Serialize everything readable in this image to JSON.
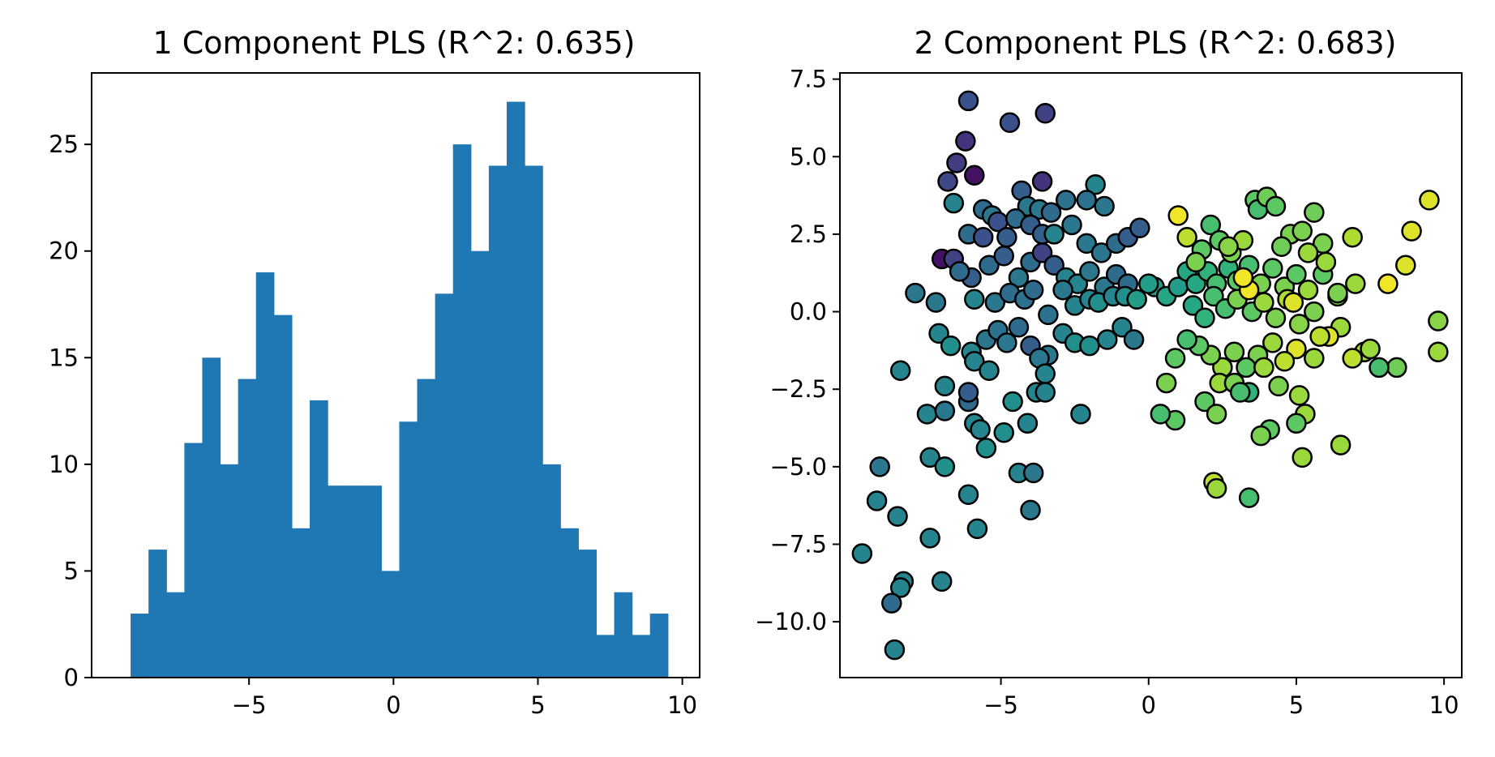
{
  "chart_data": [
    {
      "type": "bar",
      "subtype": "histogram",
      "title": "1 Component PLS (R^2: 0.635)",
      "xlabel": "",
      "ylabel": "",
      "xlim": [
        -10.45,
        10.6
      ],
      "ylim": [
        0,
        28.35
      ],
      "xticks": [
        -5,
        0,
        5,
        10
      ],
      "xtick_labels": [
        "−5",
        "0",
        "5",
        "10"
      ],
      "yticks": [
        0,
        5,
        10,
        15,
        20,
        25
      ],
      "ytick_labels": [
        "0",
        "5",
        "10",
        "15",
        "20",
        "25"
      ],
      "bar_color": "#1f77b4",
      "bin_start": -9.1,
      "bin_width": 0.62,
      "counts": [
        3,
        6,
        4,
        11,
        15,
        10,
        14,
        19,
        17,
        7,
        13,
        9,
        9,
        9,
        5,
        12,
        14,
        18,
        25,
        20,
        24,
        27,
        24,
        10,
        7,
        6,
        2,
        4,
        2,
        3
      ],
      "grid": false
    },
    {
      "type": "scatter",
      "title": "2 Component PLS (R^2: 0.683)",
      "xlabel": "",
      "ylabel": "",
      "xlim": [
        -10.45,
        10.6
      ],
      "ylim": [
        -11.8,
        7.7
      ],
      "xticks": [
        -5,
        0,
        5,
        10
      ],
      "xtick_labels": [
        "−5",
        "0",
        "5",
        "10"
      ],
      "yticks": [
        7.5,
        5.0,
        2.5,
        0.0,
        -2.5,
        -5.0,
        -7.5,
        -10.0
      ],
      "ytick_labels": [
        "7.5",
        "5.0",
        "2.5",
        "0.0",
        "−2.5",
        "−5.0",
        "−7.5",
        "−10.0"
      ],
      "marker_edge_color": "#000000",
      "colormap": "viridis",
      "grid": false,
      "points": [
        [
          -6.1,
          6.8,
          0.25
        ],
        [
          -4.7,
          6.1,
          0.25
        ],
        [
          -3.5,
          6.4,
          0.2
        ],
        [
          -6.2,
          5.5,
          0.15
        ],
        [
          -5.9,
          4.4,
          0.05
        ],
        [
          -6.5,
          4.8,
          0.18
        ],
        [
          -6.8,
          4.2,
          0.22
        ],
        [
          -3.6,
          4.2,
          0.15
        ],
        [
          -1.8,
          4.1,
          0.45
        ],
        [
          -6.6,
          3.5,
          0.45
        ],
        [
          -5.6,
          3.3,
          0.35
        ],
        [
          -5.3,
          3.1,
          0.4
        ],
        [
          -4.3,
          3.9,
          0.3
        ],
        [
          -4.1,
          3.4,
          0.4
        ],
        [
          -3.7,
          3.3,
          0.4
        ],
        [
          -3.3,
          3.2,
          0.35
        ],
        [
          -2.8,
          3.6,
          0.38
        ],
        [
          -2.1,
          3.6,
          0.38
        ],
        [
          -1.5,
          3.4,
          0.4
        ],
        [
          -6.1,
          2.5,
          0.35
        ],
        [
          -5.6,
          2.4,
          0.25
        ],
        [
          -5.1,
          2.9,
          0.25
        ],
        [
          -4.8,
          2.4,
          0.3
        ],
        [
          -4.5,
          3.0,
          0.35
        ],
        [
          -4.0,
          2.8,
          0.3
        ],
        [
          -3.6,
          2.5,
          0.3
        ],
        [
          -3.2,
          2.5,
          0.45
        ],
        [
          -2.6,
          2.8,
          0.4
        ],
        [
          -2.1,
          2.2,
          0.4
        ],
        [
          -1.6,
          1.9,
          0.4
        ],
        [
          -1.1,
          2.2,
          0.35
        ],
        [
          -0.7,
          2.4,
          0.3
        ],
        [
          -0.3,
          2.7,
          0.3
        ],
        [
          -7.0,
          1.7,
          0.05
        ],
        [
          -6.6,
          1.7,
          0.2
        ],
        [
          -6.0,
          1.1,
          0.3
        ],
        [
          -5.4,
          1.5,
          0.35
        ],
        [
          -4.9,
          1.8,
          0.3
        ],
        [
          -4.4,
          1.1,
          0.4
        ],
        [
          -4.0,
          1.6,
          0.35
        ],
        [
          -3.6,
          1.9,
          0.2
        ],
        [
          -3.2,
          1.5,
          0.3
        ],
        [
          -2.8,
          1.1,
          0.45
        ],
        [
          -2.4,
          0.9,
          0.45
        ],
        [
          -2.0,
          1.3,
          0.4
        ],
        [
          -1.5,
          0.8,
          0.4
        ],
        [
          -1.1,
          1.2,
          0.35
        ],
        [
          -0.7,
          0.9,
          0.35
        ],
        [
          -7.9,
          0.6,
          0.4
        ],
        [
          -7.2,
          0.3,
          0.4
        ],
        [
          -6.4,
          1.3,
          0.35
        ],
        [
          -5.9,
          0.4,
          0.45
        ],
        [
          -5.2,
          0.3,
          0.4
        ],
        [
          -4.7,
          0.6,
          0.35
        ],
        [
          -4.2,
          0.4,
          0.38
        ],
        [
          -3.9,
          0.7,
          0.35
        ],
        [
          -3.4,
          -0.1,
          0.38
        ],
        [
          -2.9,
          0.7,
          0.4
        ],
        [
          -2.5,
          0.2,
          0.45
        ],
        [
          -2.0,
          0.4,
          0.45
        ],
        [
          -1.7,
          0.3,
          0.5
        ],
        [
          -1.2,
          0.5,
          0.45
        ],
        [
          -0.8,
          0.5,
          0.5
        ],
        [
          -0.4,
          0.4,
          0.55
        ],
        [
          -7.1,
          -0.7,
          0.45
        ],
        [
          -6.7,
          -1.1,
          0.5
        ],
        [
          -6.0,
          -1.3,
          0.45
        ],
        [
          -5.5,
          -0.9,
          0.4
        ],
        [
          -5.1,
          -0.6,
          0.38
        ],
        [
          -4.8,
          -1.0,
          0.4
        ],
        [
          -4.4,
          -0.5,
          0.35
        ],
        [
          -4.0,
          -1.1,
          0.3
        ],
        [
          -3.4,
          -1.4,
          0.4
        ],
        [
          -2.9,
          -0.7,
          0.45
        ],
        [
          -2.5,
          -1.0,
          0.5
        ],
        [
          -2.0,
          -1.1,
          0.5
        ],
        [
          -1.4,
          -0.9,
          0.45
        ],
        [
          -0.9,
          -0.5,
          0.45
        ],
        [
          -0.5,
          -0.9,
          0.4
        ],
        [
          -8.4,
          -1.9,
          0.45
        ],
        [
          -6.9,
          -2.4,
          0.45
        ],
        [
          -6.1,
          -2.9,
          0.35
        ],
        [
          -5.9,
          -1.6,
          0.45
        ],
        [
          -5.4,
          -1.9,
          0.45
        ],
        [
          -3.8,
          -2.6,
          0.45
        ],
        [
          -3.7,
          -1.5,
          0.4
        ],
        [
          -3.5,
          -2.0,
          0.45
        ],
        [
          -3.5,
          -2.6,
          0.45
        ],
        [
          -2.3,
          -3.3,
          0.45
        ],
        [
          -7.5,
          -3.3,
          0.45
        ],
        [
          -6.9,
          -3.2,
          0.4
        ],
        [
          -6.1,
          -2.6,
          0.3
        ],
        [
          -5.9,
          -3.6,
          0.45
        ],
        [
          -5.7,
          -3.8,
          0.45
        ],
        [
          -4.9,
          -3.9,
          0.5
        ],
        [
          -4.6,
          -2.9,
          0.5
        ],
        [
          -4.1,
          -3.6,
          0.45
        ],
        [
          -7.4,
          -4.7,
          0.45
        ],
        [
          -6.9,
          -5.0,
          0.5
        ],
        [
          -6.1,
          -5.9,
          0.45
        ],
        [
          -5.5,
          -4.4,
          0.5
        ],
        [
          -4.4,
          -5.2,
          0.45
        ],
        [
          -3.9,
          -5.2,
          0.4
        ],
        [
          -4.0,
          -6.4,
          0.4
        ],
        [
          -5.8,
          -7.0,
          0.45
        ],
        [
          -9.1,
          -5.0,
          0.4
        ],
        [
          -9.2,
          -6.1,
          0.45
        ],
        [
          -8.5,
          -6.6,
          0.45
        ],
        [
          -7.4,
          -7.3,
          0.45
        ],
        [
          -9.7,
          -7.8,
          0.45
        ],
        [
          -8.3,
          -8.7,
          0.45
        ],
        [
          -7.0,
          -8.7,
          0.45
        ],
        [
          -8.4,
          -8.9,
          0.45
        ],
        [
          -8.7,
          -9.4,
          0.35
        ],
        [
          -8.6,
          -10.9,
          0.45
        ],
        [
          0.2,
          0.8,
          0.55
        ],
        [
          0.6,
          0.5,
          0.6
        ],
        [
          1.0,
          0.8,
          0.55
        ],
        [
          1.3,
          1.3,
          0.6
        ],
        [
          1.6,
          0.9,
          0.6
        ],
        [
          2.0,
          1.3,
          0.65
        ],
        [
          2.3,
          0.9,
          0.7
        ],
        [
          2.7,
          1.4,
          0.65
        ],
        [
          3.0,
          1.0,
          0.75
        ],
        [
          3.4,
          1.5,
          0.7
        ],
        [
          3.8,
          0.9,
          0.8
        ],
        [
          4.2,
          1.4,
          0.75
        ],
        [
          4.6,
          0.8,
          0.8
        ],
        [
          5.0,
          1.2,
          0.75
        ],
        [
          5.4,
          0.7,
          0.85
        ],
        [
          5.9,
          1.2,
          0.75
        ],
        [
          6.4,
          0.5,
          0.8
        ],
        [
          1.0,
          3.1,
          0.98
        ],
        [
          1.3,
          2.4,
          0.9
        ],
        [
          1.8,
          2.0,
          0.75
        ],
        [
          2.1,
          2.8,
          0.7
        ],
        [
          2.4,
          2.3,
          0.75
        ],
        [
          2.8,
          1.9,
          0.8
        ],
        [
          3.2,
          2.3,
          0.85
        ],
        [
          3.6,
          3.6,
          0.75
        ],
        [
          3.7,
          3.3,
          0.7
        ],
        [
          4.0,
          3.7,
          0.78
        ],
        [
          4.3,
          3.4,
          0.75
        ],
        [
          4.8,
          2.5,
          0.8
        ],
        [
          5.2,
          2.6,
          0.8
        ],
        [
          5.6,
          3.2,
          0.78
        ],
        [
          5.9,
          2.2,
          0.8
        ],
        [
          6.0,
          1.6,
          0.85
        ],
        [
          6.9,
          2.4,
          0.88
        ],
        [
          7.0,
          0.9,
          0.85
        ],
        [
          8.1,
          0.9,
          0.98
        ],
        [
          8.7,
          1.5,
          0.95
        ],
        [
          8.9,
          2.6,
          0.95
        ],
        [
          9.5,
          3.6,
          0.95
        ],
        [
          9.8,
          -0.3,
          0.82
        ],
        [
          9.8,
          -1.3,
          0.85
        ],
        [
          8.4,
          -1.8,
          0.78
        ],
        [
          7.8,
          -1.8,
          0.7
        ],
        [
          7.3,
          -1.3,
          0.88
        ],
        [
          6.9,
          -1.5,
          0.9
        ],
        [
          6.5,
          -0.5,
          0.85
        ],
        [
          6.1,
          -0.8,
          0.95
        ],
        [
          5.6,
          -1.5,
          0.85
        ],
        [
          5.0,
          -1.2,
          0.95
        ],
        [
          4.6,
          -1.6,
          0.9
        ],
        [
          4.2,
          -1.0,
          0.85
        ],
        [
          3.7,
          -1.4,
          0.8
        ],
        [
          3.3,
          -1.8,
          0.75
        ],
        [
          2.9,
          -1.3,
          0.8
        ],
        [
          2.5,
          -1.8,
          0.85
        ],
        [
          2.1,
          -1.4,
          0.8
        ],
        [
          1.7,
          -1.1,
          0.75
        ],
        [
          1.3,
          -0.9,
          0.7
        ],
        [
          0.9,
          -1.5,
          0.75
        ],
        [
          0.6,
          -2.3,
          0.8
        ],
        [
          0.9,
          -3.5,
          0.75
        ],
        [
          0.4,
          -3.3,
          0.7
        ],
        [
          1.9,
          -2.9,
          0.75
        ],
        [
          2.3,
          -3.3,
          0.8
        ],
        [
          2.4,
          -2.3,
          0.85
        ],
        [
          2.9,
          -2.3,
          0.8
        ],
        [
          3.4,
          -2.6,
          0.65
        ],
        [
          3.9,
          -1.8,
          0.85
        ],
        [
          4.4,
          -2.4,
          0.8
        ],
        [
          5.1,
          -2.7,
          0.85
        ],
        [
          5.3,
          -3.3,
          0.85
        ],
        [
          5.0,
          -3.6,
          0.75
        ],
        [
          4.1,
          -3.8,
          0.75
        ],
        [
          3.8,
          -4.0,
          0.8
        ],
        [
          5.2,
          -4.7,
          0.85
        ],
        [
          6.5,
          -4.3,
          0.85
        ],
        [
          2.2,
          -5.5,
          0.9
        ],
        [
          2.3,
          -5.7,
          0.85
        ],
        [
          3.4,
          -6.0,
          0.7
        ],
        [
          3.1,
          -2.6,
          0.7
        ],
        [
          0.0,
          0.9,
          0.55
        ],
        [
          1.5,
          0.2,
          0.6
        ],
        [
          1.9,
          -0.2,
          0.65
        ],
        [
          2.2,
          0.5,
          0.7
        ],
        [
          2.6,
          0.1,
          0.7
        ],
        [
          3.0,
          0.4,
          0.8
        ],
        [
          3.5,
          0.0,
          0.75
        ],
        [
          3.9,
          0.3,
          0.85
        ],
        [
          4.3,
          -0.2,
          0.8
        ],
        [
          4.7,
          0.4,
          0.88
        ],
        [
          5.1,
          -0.4,
          0.82
        ],
        [
          5.6,
          0.0,
          0.8
        ],
        [
          3.4,
          0.7,
          0.98
        ],
        [
          3.2,
          1.1,
          0.98
        ],
        [
          4.9,
          0.3,
          0.95
        ],
        [
          5.8,
          -0.8,
          0.9
        ],
        [
          1.6,
          1.6,
          0.8
        ],
        [
          2.7,
          2.1,
          0.82
        ],
        [
          4.5,
          2.1,
          0.78
        ],
        [
          5.4,
          1.9,
          0.85
        ],
        [
          6.4,
          0.6,
          0.8
        ],
        [
          7.5,
          -1.2,
          0.85
        ]
      ]
    }
  ]
}
